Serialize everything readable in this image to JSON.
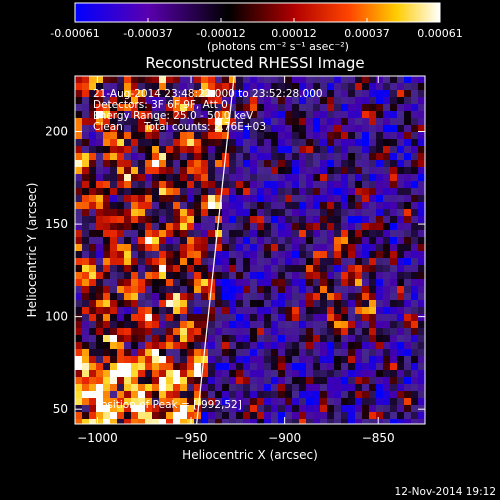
{
  "chart_data": {
    "type": "heatmap",
    "title": "Reconstructed RHESSI Image",
    "xlabel": "Heliocentric X (arcsec)",
    "ylabel": "Heliocentric Y (arcsec)",
    "xlim": [
      -1012,
      -825
    ],
    "ylim": [
      42,
      230
    ],
    "xticks": [
      -1000,
      -950,
      -900,
      -850
    ],
    "yticks": [
      50,
      100,
      150,
      200
    ],
    "colorbar": {
      "range": [
        -0.00061,
        0.00061
      ],
      "ticks": [
        "-0.00061",
        "-0.00037",
        "-0.00012",
        "0.00012",
        "0.00037",
        "0.00061"
      ],
      "unit_label": "(photons cm⁻² s⁻¹ asec⁻²)",
      "colormap": [
        "#0000ff",
        "#5500aa",
        "#000000",
        "#aa0000",
        "#ff5500",
        "#ffcc00",
        "#ffffff"
      ]
    },
    "annotations": {
      "time_range": "21-Aug-2014 23:48:22.000 to 23:52:28.000",
      "detectors": "Detectors: 3F 6F 9F, Att 0",
      "energy": "Energy Range: 25.0 - 50.0 keV",
      "method": "Clean",
      "counts": "Total counts: 2.76E+03",
      "peak": "Position of Peak = [-992,52]"
    },
    "limb_line": {
      "x": [
        -947,
        -927
      ],
      "y": [
        42,
        230
      ]
    },
    "footer_date": "12-Nov-2014 19:12"
  }
}
